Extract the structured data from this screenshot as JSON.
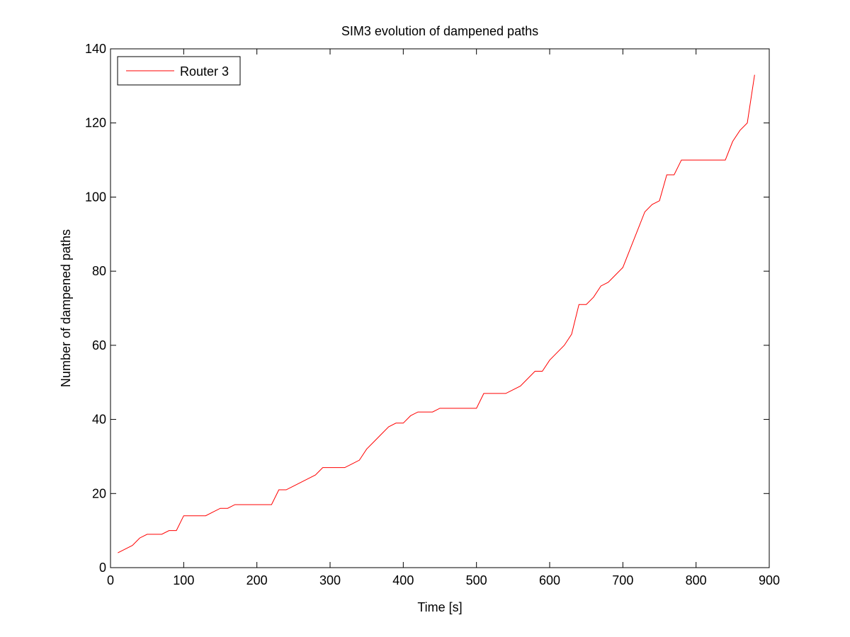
{
  "chart_data": {
    "type": "line",
    "title": "SIM3 evolution of dampened paths",
    "xlabel": "Time [s]",
    "ylabel": "Number of dampened paths",
    "xlim": [
      0,
      900
    ],
    "ylim": [
      0,
      140
    ],
    "x_ticks": [
      0,
      100,
      200,
      300,
      400,
      500,
      600,
      700,
      800,
      900
    ],
    "y_ticks": [
      0,
      20,
      40,
      60,
      80,
      100,
      120,
      140
    ],
    "x_tick_labels": [
      "0",
      "100",
      "200",
      "300",
      "400",
      "500",
      "600",
      "700",
      "800",
      "900"
    ],
    "y_tick_labels": [
      "0",
      "20",
      "40",
      "60",
      "80",
      "100",
      "120",
      "140"
    ],
    "grid": false,
    "legend_position": "top-left",
    "series": [
      {
        "name": "Router 3",
        "color": "#ff0000",
        "x": [
          10,
          20,
          30,
          40,
          50,
          60,
          70,
          80,
          90,
          100,
          110,
          120,
          130,
          140,
          150,
          160,
          170,
          180,
          190,
          200,
          210,
          220,
          230,
          240,
          250,
          260,
          270,
          280,
          290,
          300,
          310,
          320,
          330,
          340,
          350,
          360,
          370,
          380,
          390,
          400,
          410,
          420,
          430,
          440,
          450,
          460,
          470,
          480,
          490,
          500,
          510,
          520,
          530,
          540,
          550,
          560,
          570,
          580,
          590,
          600,
          610,
          620,
          630,
          640,
          650,
          660,
          670,
          680,
          690,
          700,
          710,
          720,
          730,
          740,
          750,
          760,
          770,
          780,
          790,
          800,
          810,
          820,
          830,
          840,
          850,
          860,
          870,
          880
        ],
        "y": [
          4,
          5,
          6,
          8,
          9,
          9,
          9,
          10,
          10,
          14,
          14,
          14,
          14,
          15,
          16,
          16,
          17,
          17,
          17,
          17,
          17,
          17,
          21,
          21,
          22,
          23,
          24,
          25,
          27,
          27,
          27,
          27,
          28,
          29,
          32,
          34,
          36,
          38,
          39,
          39,
          41,
          42,
          42,
          42,
          43,
          43,
          43,
          43,
          43,
          43,
          47,
          47,
          47,
          47,
          48,
          49,
          51,
          53,
          53,
          56,
          58,
          60,
          63,
          71,
          71,
          73,
          76,
          77,
          79,
          81,
          86,
          91,
          96,
          98,
          99,
          106,
          106,
          110,
          110,
          110,
          110,
          110,
          110,
          110,
          115,
          118,
          120,
          133
        ]
      }
    ]
  }
}
